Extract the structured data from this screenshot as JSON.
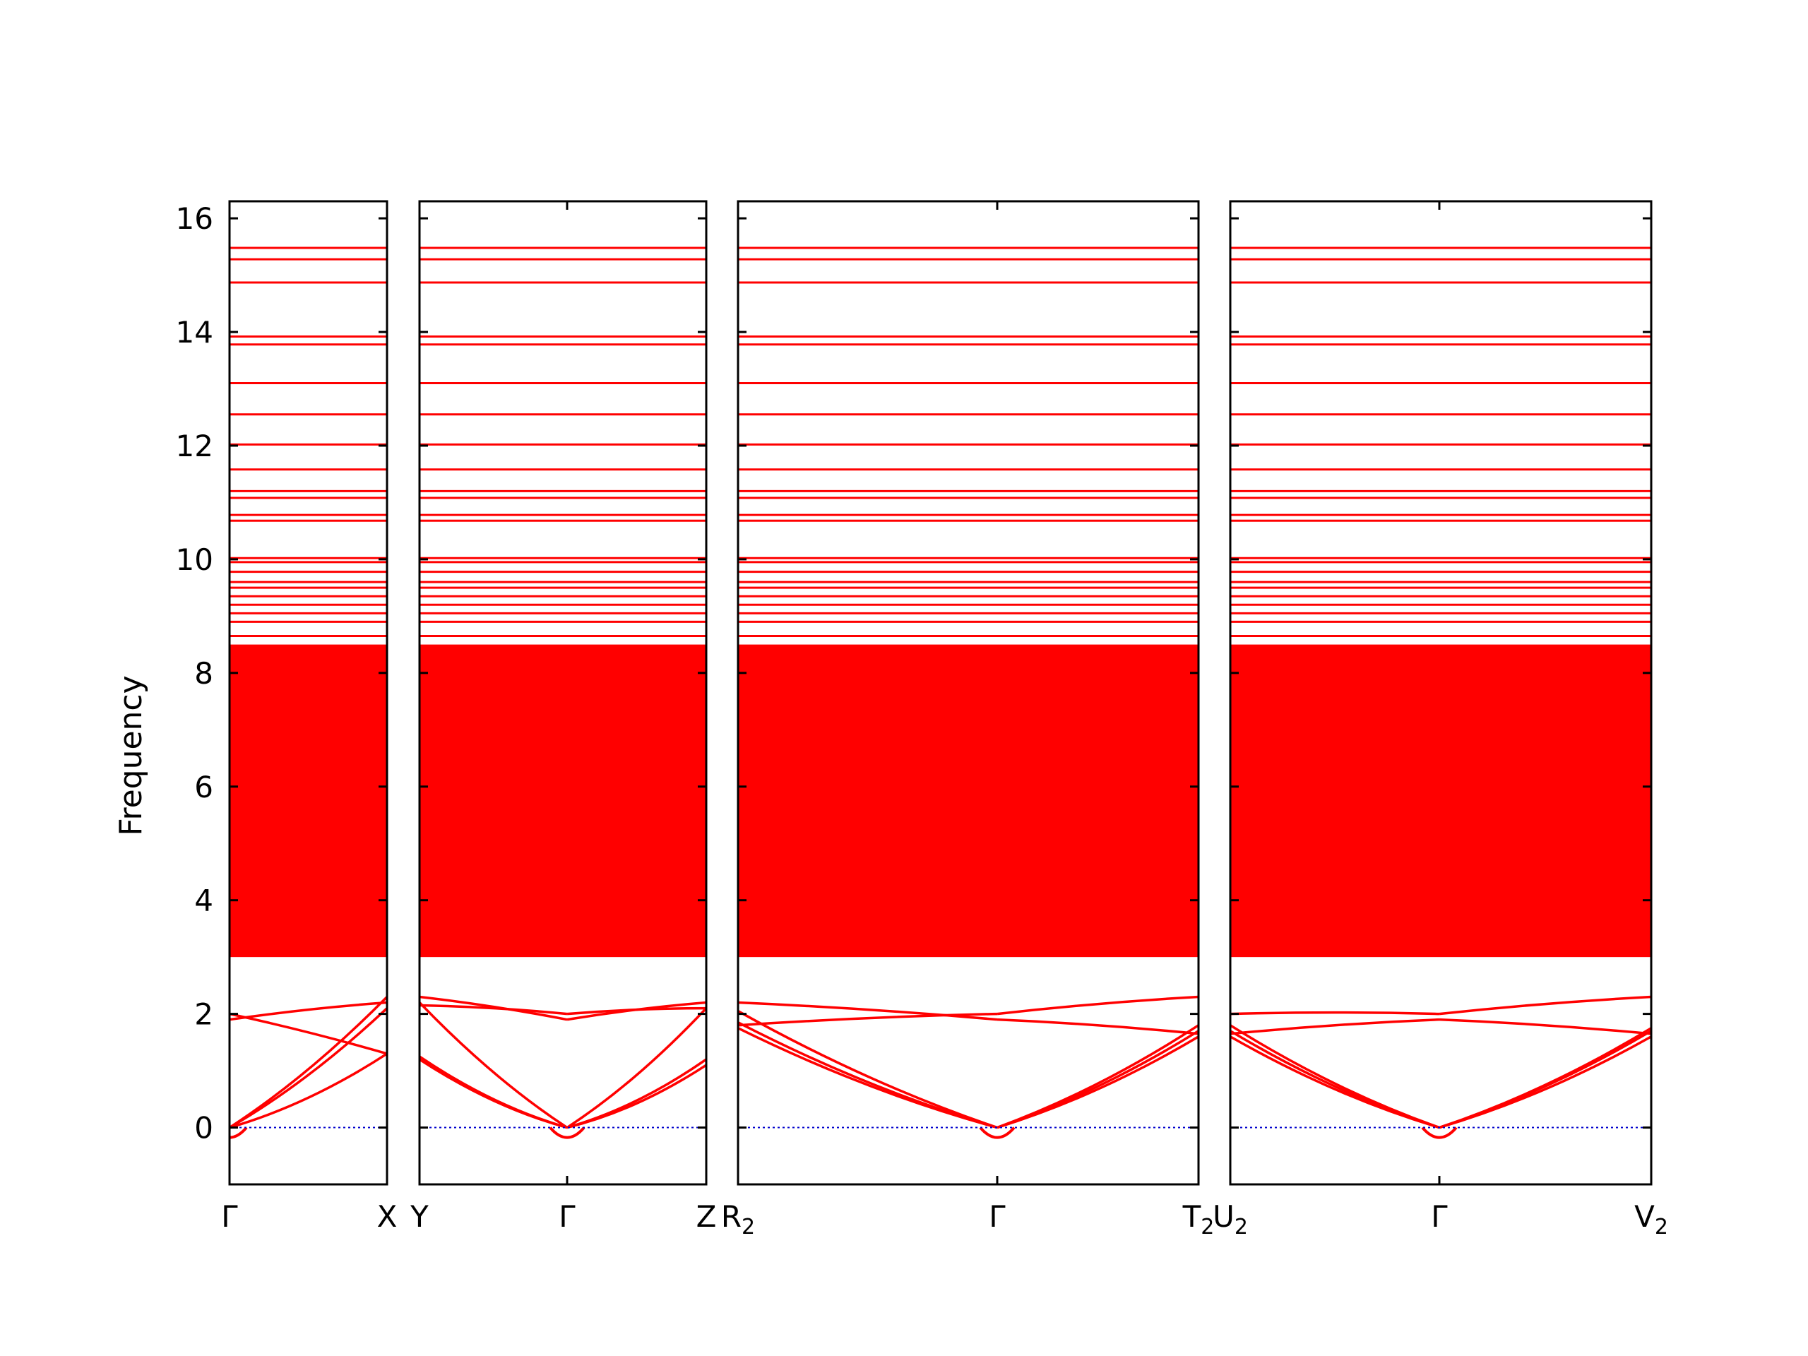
{
  "chart_data": {
    "type": "line",
    "ylabel": "Frequency",
    "ylim": [
      -1.0,
      16.3
    ],
    "yticks": [
      "0",
      "2",
      "4",
      "6",
      "8",
      "10",
      "12",
      "14",
      "16"
    ],
    "line_color": "#ff0000",
    "zero_line_color": "#0000cc",
    "grid": false,
    "band_fill_range": [
      3.0,
      8.5
    ],
    "flat_bands": [
      15.48,
      15.28,
      14.87,
      13.92,
      13.78,
      13.1,
      12.55,
      12.02,
      11.58,
      11.2,
      11.08,
      10.78,
      10.68,
      10.02,
      9.95,
      9.78,
      9.6,
      9.5,
      9.35,
      9.2,
      9.05,
      8.9,
      8.65
    ],
    "panels": [
      {
        "segments": [
          {
            "from": "Γ",
            "to": "X",
            "from_freq": [
              0,
              0,
              0,
              2.0,
              1.9
            ],
            "to_freq": [
              2.1,
              1.3,
              2.3,
              1.3,
              2.2
            ]
          }
        ],
        "tick_labels": [
          {
            "main": "Γ",
            "sub": ""
          },
          {
            "main": "X",
            "sub": ""
          }
        ]
      },
      {
        "segments": [
          {
            "from": "Y",
            "to": "Γ",
            "from_freq": [
              2.2,
              1.2,
              1.25,
              2.3,
              2.15
            ],
            "to_freq": [
              0,
              0,
              0,
              1.9,
              2.0
            ]
          },
          {
            "from": "Γ",
            "to": "Z",
            "from_freq": [
              0,
              0,
              0,
              1.9,
              2.0
            ],
            "to_freq": [
              2.1,
              1.1,
              1.2,
              2.2,
              2.1
            ]
          }
        ],
        "tick_labels": [
          {
            "main": "Y",
            "sub": ""
          },
          {
            "main": "Γ",
            "sub": ""
          },
          {
            "main": "Z",
            "sub": ""
          }
        ]
      },
      {
        "segments": [
          {
            "from": "R2",
            "to": "Γ",
            "from_freq": [
              2.05,
              1.75,
              1.85,
              2.2,
              1.8
            ],
            "to_freq": [
              0,
              0,
              0,
              1.9,
              2.0
            ]
          },
          {
            "from": "Γ",
            "to": "T2",
            "from_freq": [
              0,
              0,
              0,
              1.9,
              2.0
            ],
            "to_freq": [
              1.6,
              1.7,
              1.8,
              1.65,
              2.3
            ]
          }
        ],
        "tick_labels": [
          {
            "main": "R",
            "sub": "2"
          },
          {
            "main": "Γ",
            "sub": ""
          },
          {
            "main": "T",
            "sub": "2"
          }
        ]
      },
      {
        "segments": [
          {
            "from": "U2",
            "to": "Γ",
            "from_freq": [
              1.6,
              1.7,
              1.8,
              1.65,
              2.0
            ],
            "to_freq": [
              0,
              0,
              0,
              1.9,
              2.0
            ]
          },
          {
            "from": "Γ",
            "to": "V2",
            "from_freq": [
              0,
              0,
              0,
              1.9,
              2.0
            ],
            "to_freq": [
              1.6,
              1.7,
              1.75,
              1.65,
              2.3
            ]
          }
        ],
        "tick_labels": [
          {
            "main": "U",
            "sub": "2"
          },
          {
            "main": "Γ",
            "sub": ""
          },
          {
            "main": "V",
            "sub": "2"
          }
        ]
      }
    ]
  }
}
